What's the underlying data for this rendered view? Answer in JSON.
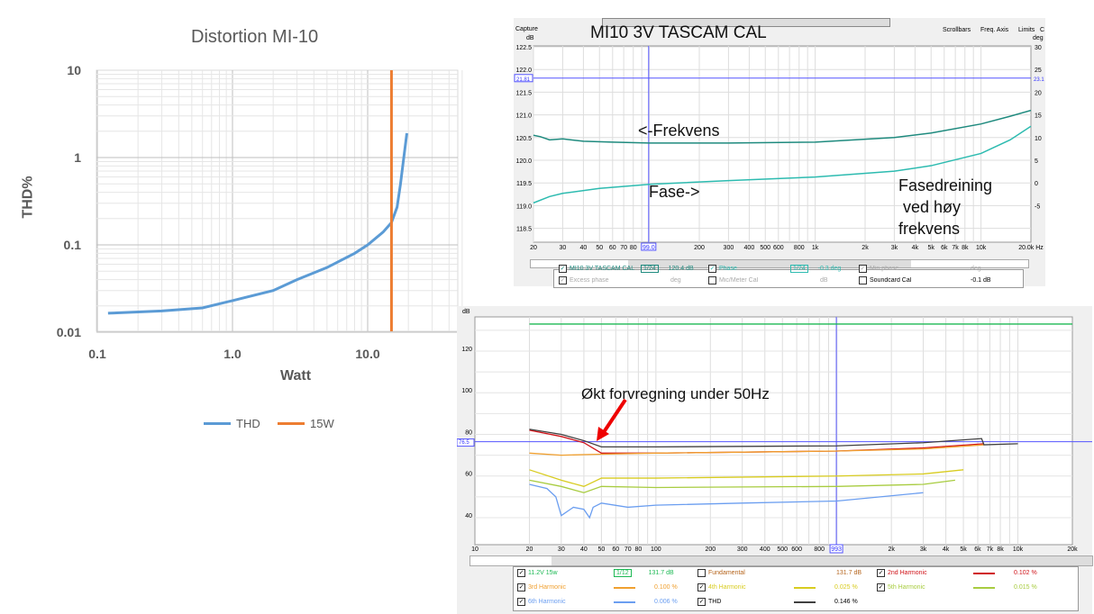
{
  "chart_data": [
    {
      "type": "line",
      "title": "Distortion MI-10",
      "xlabel": "Watt",
      "ylabel": "THD%",
      "xscale": "log",
      "yscale": "log",
      "xlim": [
        0.1,
        50
      ],
      "ylim": [
        0.01,
        10
      ],
      "xticks": [
        "0.1",
        "1.0",
        "10.0"
      ],
      "yticks": [
        "10",
        "1",
        "0.1",
        "0.01"
      ],
      "series": [
        {
          "name": "THD",
          "color": "#5b9bd5",
          "x": [
            0.12,
            0.3,
            0.6,
            1,
            2,
            3,
            5,
            8,
            10,
            13,
            15,
            16.5,
            17.5,
            18.5,
            19.5
          ],
          "y": [
            0.0165,
            0.0175,
            0.019,
            0.023,
            0.03,
            0.04,
            0.055,
            0.08,
            0.1,
            0.14,
            0.18,
            0.27,
            0.5,
            1.0,
            1.9
          ]
        }
      ],
      "vlines": [
        {
          "name": "15W",
          "x": 15,
          "color": "#ed7d31"
        }
      ],
      "legend": "bottom"
    },
    {
      "type": "line",
      "title": "MI10 3V TASCAM CAL",
      "xlabel": "Hz",
      "ylabel": "dB",
      "ylabel_right": "deg",
      "xscale": "log",
      "xlim": [
        20,
        20000
      ],
      "ylim": [
        118.2,
        122.6
      ],
      "ylim_right": [
        -7,
        31
      ],
      "header": {
        "capture": "Capture",
        "scrollbars": "Scrollbars",
        "freq_axis": "Freq. Axis",
        "limits": "Limits",
        "c": "C"
      },
      "xticks": [
        "20",
        "30",
        "40",
        "50",
        "60",
        "70",
        "80",
        "200",
        "300",
        "400",
        "500",
        "600",
        "800",
        "1k",
        "2k",
        "3k",
        "4k",
        "5k",
        "6k",
        "7k",
        "8k",
        "10k",
        "20.0k Hz"
      ],
      "yticks": [
        "122.5",
        "122.0",
        "121.5",
        "121.0",
        "120.5",
        "120.0",
        "119.5",
        "119.0",
        "118.5"
      ],
      "yticks_right": [
        "30",
        "25",
        "20",
        "15",
        "10",
        "5",
        "0",
        "-5"
      ],
      "cursor": {
        "freq": "99.0",
        "level": "21.81",
        "right": "23.1"
      },
      "series": [
        {
          "name": "MI10 3V TASCAM CAL",
          "axis": "left",
          "color": "#1e8a7e",
          "x": [
            20,
            22,
            25,
            30,
            40,
            60,
            100,
            300,
            1000,
            3000,
            5000,
            10000,
            15000,
            20000
          ],
          "y": [
            120.55,
            120.52,
            120.45,
            120.47,
            120.42,
            120.4,
            120.38,
            120.38,
            120.4,
            120.5,
            120.6,
            120.8,
            120.97,
            121.1
          ]
        },
        {
          "name": "Phase",
          "axis": "right",
          "color": "#2dbbb0",
          "x": [
            20,
            25,
            30,
            50,
            100,
            300,
            1000,
            3000,
            5000,
            10000,
            15000,
            20000
          ],
          "y": [
            -4.4,
            -3,
            -2.3,
            -1.2,
            -0.3,
            0.5,
            1.3,
            2.6,
            3.8,
            6.5,
            9.5,
            12.5
          ]
        }
      ],
      "annotations": [
        "<-Frekvens",
        "Fase->",
        "Fasedreining",
        "ved høy",
        "frekvens"
      ],
      "legend_items": [
        {
          "label": "MI10 3V TASCAM CAL",
          "checked": true,
          "smooth": "1/24",
          "value": "120.4 dB"
        },
        {
          "label": "Phase",
          "checked": true,
          "smooth": "1/24",
          "value": "-0.3 deg"
        },
        {
          "label": "Min phase",
          "checked": true,
          "value": "deg"
        },
        {
          "label": "Excess phase",
          "checked": true,
          "value": "deg"
        },
        {
          "label": "Mic/Meter Cal",
          "checked": false,
          "value": "dB"
        },
        {
          "label": "Soundcard Cal",
          "checked": false,
          "value": "-0.1 dB"
        }
      ]
    },
    {
      "type": "line",
      "ylabel": "dB",
      "xscale": "log",
      "xlim": [
        10,
        20000
      ],
      "ylim": [
        30,
        136
      ],
      "xticks": [
        "10",
        "20",
        "30",
        "40",
        "50",
        "60",
        "70",
        "80",
        "100",
        "200",
        "300",
        "400",
        "500",
        "600",
        "800",
        "2k",
        "3k",
        "4k",
        "5k",
        "6k",
        "7k",
        "8k",
        "10k",
        "20k"
      ],
      "yticks": [
        "120",
        "100",
        "80",
        "60",
        "40"
      ],
      "cursor": {
        "freq": "993",
        "level": "76.5"
      },
      "annotation": "Økt forvregning under 50Hz",
      "series": [
        {
          "name": "11.2V 15w",
          "color": "#1db954",
          "value": "131.7 dB",
          "smooth": "1/12",
          "checked": true,
          "x": [
            20,
            20000
          ],
          "y": [
            133,
            133
          ]
        },
        {
          "name": "Fundamental",
          "color": "#b5651d",
          "value": "131.7 dB",
          "checked": false,
          "x": [],
          "y": []
        },
        {
          "name": "2nd Harmonic",
          "color": "#d0141a",
          "value": "0.102 %",
          "checked": true,
          "x": [
            20,
            30,
            40,
            50,
            100,
            1000,
            3000,
            6500
          ],
          "y": [
            82,
            79,
            76,
            71,
            71,
            72,
            73.5,
            75.5
          ]
        },
        {
          "name": "3rd Harmonic",
          "color": "#f0a030",
          "value": "0.100 %",
          "checked": true,
          "x": [
            20,
            30,
            50,
            100,
            1000,
            3000,
            6500
          ],
          "y": [
            71,
            70,
            70.5,
            71,
            72,
            73,
            75
          ]
        },
        {
          "name": "4th Harmonic",
          "color": "#d8cc20",
          "value": "0.025 %",
          "checked": true,
          "x": [
            20,
            30,
            40,
            50,
            100,
            1000,
            3000,
            5000
          ],
          "y": [
            63,
            58,
            55,
            59,
            59,
            60,
            61,
            63
          ]
        },
        {
          "name": "5th Harmonic",
          "color": "#a8cc40",
          "value": "0.015 %",
          "checked": true,
          "x": [
            20,
            30,
            40,
            50,
            100,
            1000,
            3000,
            4500
          ],
          "y": [
            58,
            55,
            52,
            55,
            54.5,
            55,
            56,
            58
          ]
        },
        {
          "name": "6th Harmonic",
          "color": "#6b9ef0",
          "value": "0.006 %",
          "checked": true,
          "x": [
            20,
            25,
            28,
            30,
            35,
            40,
            43,
            45,
            50,
            70,
            100,
            300,
            1000,
            3000
          ],
          "y": [
            56,
            54,
            50,
            41,
            45,
            44,
            40,
            45,
            47,
            45,
            46,
            47,
            48,
            52
          ]
        },
        {
          "name": "THD",
          "color": "#404040",
          "value": "0.146 %",
          "checked": true,
          "x": [
            20,
            30,
            40,
            50,
            100,
            1000,
            3000,
            6300,
            6500,
            10000
          ],
          "y": [
            82.5,
            80,
            77,
            74,
            74,
            74.5,
            76,
            78,
            75,
            75.5
          ]
        }
      ]
    }
  ]
}
